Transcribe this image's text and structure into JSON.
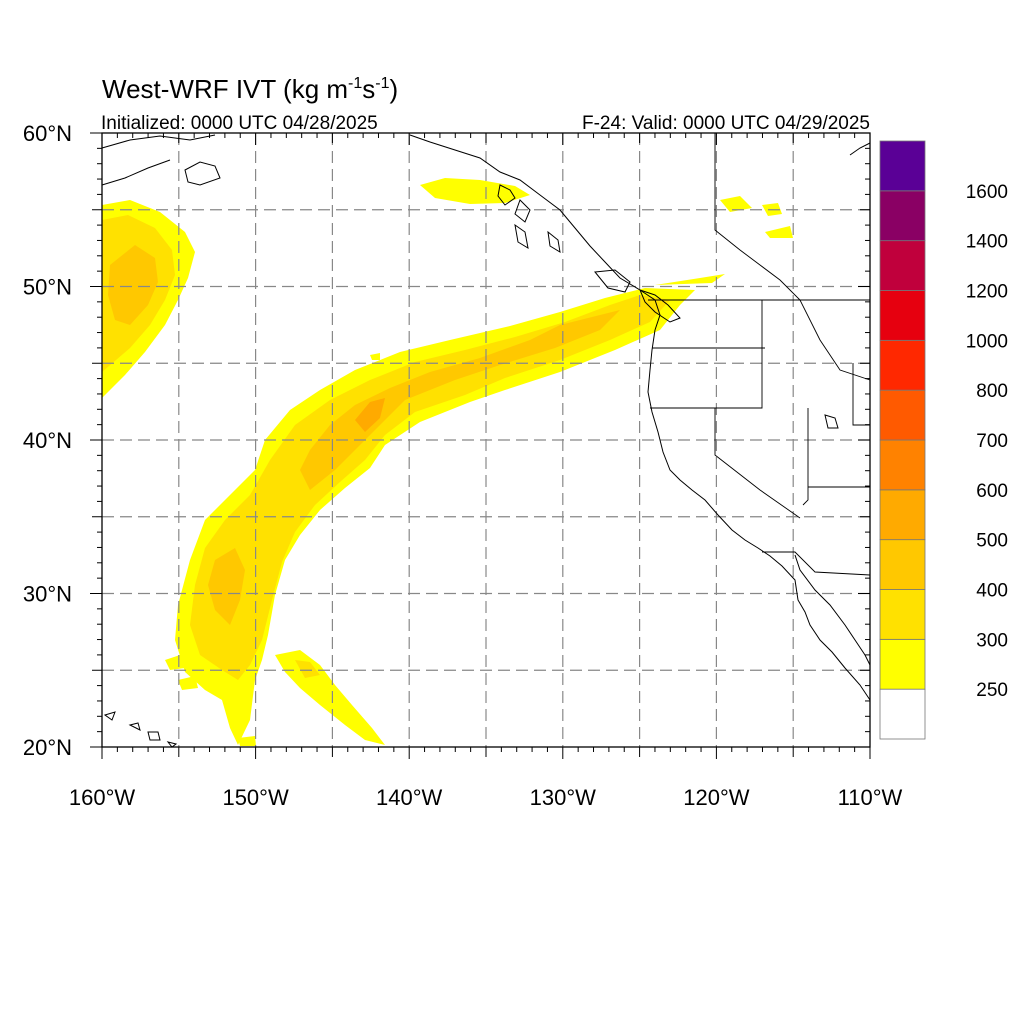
{
  "title": {
    "main": "West-WRF IVT (kg m",
    "sup1": "-1",
    "mid": "s",
    "sup2": "-1",
    "end": ")"
  },
  "subtitle_left": "Initialized: 0000 UTC 04/28/2025",
  "subtitle_right": "F-24: Valid: 0000 UTC 04/29/2025",
  "map": {
    "lon_range": [
      -160,
      -110
    ],
    "lat_range": [
      20,
      60
    ],
    "lon_ticks": [
      {
        "value": -160,
        "label": "160°W"
      },
      {
        "value": -150,
        "label": "150°W"
      },
      {
        "value": -140,
        "label": "140°W"
      },
      {
        "value": -130,
        "label": "130°W"
      },
      {
        "value": -120,
        "label": "120°W"
      },
      {
        "value": -110,
        "label": "110°W"
      }
    ],
    "lat_ticks": [
      {
        "value": 20,
        "label": "20°N"
      },
      {
        "value": 30,
        "label": "30°N"
      },
      {
        "value": 40,
        "label": "40°N"
      },
      {
        "value": 50,
        "label": "50°N"
      },
      {
        "value": 60,
        "label": "60°N"
      }
    ],
    "grid_lons": [
      -155,
      -150,
      -145,
      -140,
      -135,
      -130,
      -125,
      -120,
      -115
    ],
    "grid_lats": [
      25,
      30,
      35,
      40,
      45,
      50,
      55
    ]
  },
  "colorbar": {
    "labels": [
      "250",
      "300",
      "400",
      "500",
      "600",
      "700",
      "800",
      "1000",
      "1200",
      "1400",
      "1600"
    ],
    "colors": [
      "#ffffff",
      "#ffff00",
      "#ffe100",
      "#ffc800",
      "#ffaa00",
      "#ff8200",
      "#ff5a00",
      "#ff2800",
      "#e6000f",
      "#c0003c",
      "#8a0064",
      "#5a0096"
    ]
  }
}
